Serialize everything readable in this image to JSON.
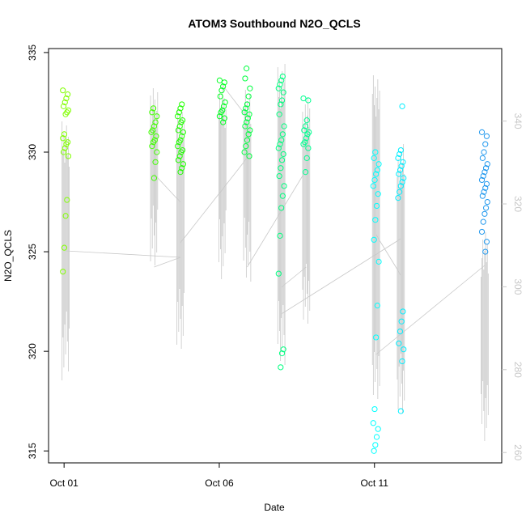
{
  "chart_data": {
    "type": "scatter",
    "title": "ATOM3 Southbound N2O_QCLS",
    "xlabel": "Date",
    "ylabel": "N2O_QCLS",
    "x_ticks": [
      "Oct 01",
      "Oct 06",
      "Oct 11"
    ],
    "x_tick_days": [
      1,
      6,
      11
    ],
    "xlim": [
      0.5,
      15.1
    ],
    "ylim": [
      314.4,
      335.2
    ],
    "y_ticks": [
      315,
      320,
      325,
      330,
      335
    ],
    "y2_ticks": [
      260,
      280,
      300,
      320,
      340
    ],
    "y2lim": [
      257.5,
      357.5
    ],
    "grid": false,
    "legend": "none",
    "colors": {
      "axis": "#000000",
      "secondary_axis": "#c8c8c8",
      "profile_line": "#c8c8c8",
      "frame": "#000000"
    },
    "series": [
      {
        "color": "#80ff00",
        "day": 1.05,
        "values": [
          333.1,
          332.9,
          332.7,
          332.5,
          332.3,
          332.1,
          332.0,
          331.9,
          330.9,
          330.7,
          330.5,
          330.4,
          330.2,
          330.0,
          329.8,
          327.6,
          326.8,
          325.2,
          324.0
        ]
      },
      {
        "color": "#40ff00",
        "day": 3.9,
        "values": [
          332.2,
          332.0,
          331.8,
          331.5,
          331.3,
          331.1,
          331.0,
          330.8,
          330.6,
          330.5,
          330.3,
          330.0,
          329.5,
          328.7
        ]
      },
      {
        "color": "#20ff00",
        "day": 4.75,
        "values": [
          332.4,
          332.2,
          332.0,
          331.8,
          331.6,
          331.5,
          331.3,
          331.1,
          331.0,
          330.8,
          330.6,
          330.5,
          330.3,
          330.1,
          330.0,
          329.8,
          329.6,
          329.4,
          329.2,
          329.0
        ]
      },
      {
        "color": "#00ff20",
        "day": 6.1,
        "values": [
          333.6,
          333.5,
          333.3,
          333.1,
          332.8,
          332.5,
          332.3,
          332.1,
          332.0,
          331.8,
          331.7,
          331.5
        ]
      },
      {
        "color": "#00ff40",
        "day": 6.9,
        "values": [
          334.2,
          333.7,
          333.2,
          332.8,
          332.4,
          332.2,
          332.0,
          331.9,
          331.7,
          331.5,
          331.3,
          331.1,
          330.9,
          330.6,
          330.3,
          330.0,
          329.8
        ]
      },
      {
        "color": "#00ff80",
        "day": 8.0,
        "values": [
          333.8,
          333.6,
          333.4,
          333.2,
          333.0,
          332.6,
          332.4,
          331.9,
          331.3,
          330.9,
          330.6,
          330.4,
          330.2,
          329.9,
          329.6,
          329.2,
          328.8,
          328.3,
          327.8,
          327.2,
          325.8,
          323.9,
          320.1,
          319.9,
          319.2
        ]
      },
      {
        "color": "#00ff90",
        "day": 8.8,
        "values": [
          332.7,
          332.6,
          331.6,
          331.3,
          331.1,
          331.0,
          330.9,
          330.7,
          330.5,
          330.4,
          330.2,
          329.7,
          329.0
        ]
      },
      {
        "color": "#00ffff",
        "day": 11.05,
        "values": [
          330.0,
          329.7,
          329.4,
          329.1,
          328.9,
          328.6,
          328.3,
          327.9,
          327.3,
          326.6,
          325.6,
          324.5,
          322.3,
          320.7,
          317.1,
          316.4,
          316.1,
          315.7,
          315.3,
          315.0
        ]
      },
      {
        "color": "#00eeff",
        "day": 11.85,
        "values": [
          332.3,
          330.1,
          329.9,
          329.7,
          329.5,
          329.3,
          329.1,
          328.9,
          328.7,
          328.5,
          328.3,
          328.0,
          327.7,
          322.0,
          321.5,
          321.0,
          320.4,
          320.1,
          319.5,
          317.0
        ]
      },
      {
        "color": "#2299ee",
        "day": 14.55,
        "values": [
          331.0,
          330.8,
          330.4,
          330.0,
          329.7,
          329.4,
          329.2,
          329.0,
          328.8,
          328.6,
          328.4,
          328.2,
          328.0,
          327.8,
          327.5,
          327.2,
          326.9,
          326.5,
          326.0,
          325.5,
          325.0
        ]
      }
    ]
  }
}
